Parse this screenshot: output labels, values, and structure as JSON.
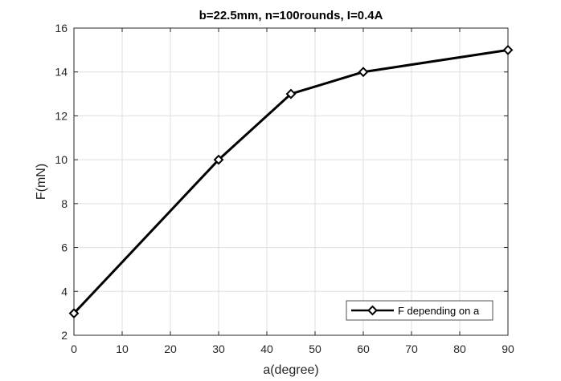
{
  "chart_data": {
    "type": "line",
    "title": "b=22.5mm, n=100rounds, I=0.4A",
    "xlabel": "a(degree)",
    "ylabel": "F(mN)",
    "xlim": [
      0,
      90
    ],
    "ylim": [
      2,
      16
    ],
    "xticks": [
      0,
      10,
      20,
      30,
      40,
      50,
      60,
      70,
      80,
      90
    ],
    "yticks": [
      2,
      4,
      6,
      8,
      10,
      12,
      14,
      16
    ],
    "grid": true,
    "legend_position": "bottom-right",
    "series": [
      {
        "name": "F depending on a",
        "marker": "diamond",
        "color": "#000000",
        "x": [
          0,
          30,
          45,
          60,
          90
        ],
        "y": [
          3,
          10,
          13,
          14,
          15
        ]
      }
    ]
  }
}
